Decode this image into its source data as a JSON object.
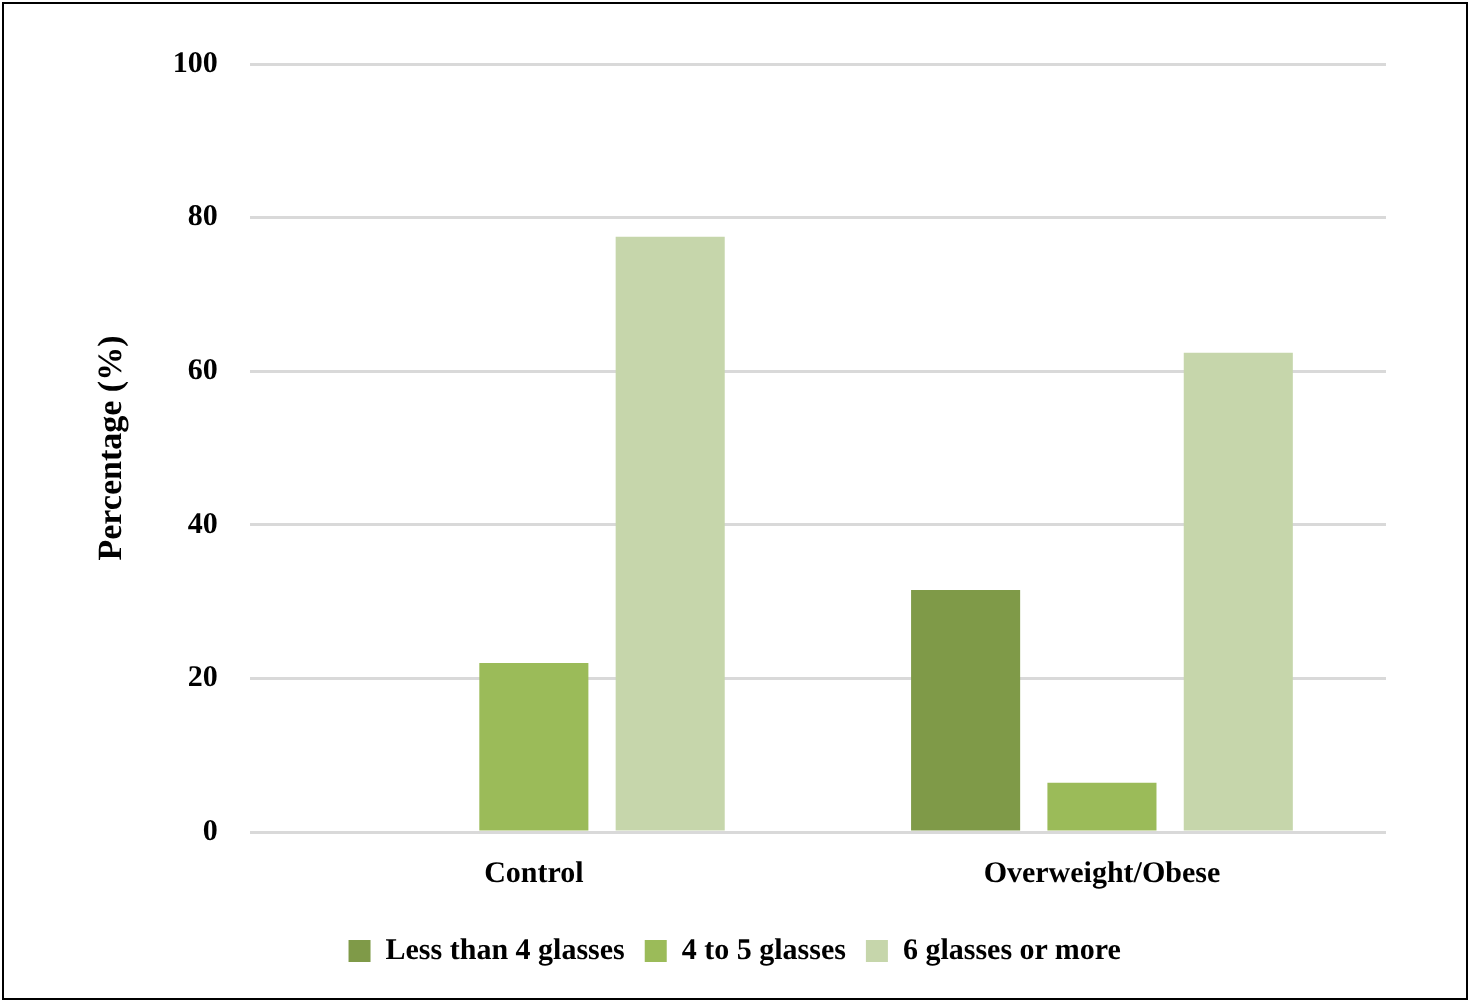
{
  "chart_data": {
    "type": "bar",
    "ylabel": "Percentage (%)",
    "categories": [
      "Control",
      "Overweight/Obese"
    ],
    "series": [
      {
        "name": "Less than 4 glasses",
        "color": "#7f9a48",
        "values": [
          0,
          31.5
        ]
      },
      {
        "name": "4 to 5 glasses",
        "color": "#9bbb59",
        "values": [
          22,
          6.4
        ]
      },
      {
        "name": "6 glasses or more",
        "color": "#c6d6ab",
        "values": [
          77.5,
          62.4
        ]
      }
    ],
    "ylim": [
      0,
      100
    ],
    "yticks": [
      0,
      20,
      40,
      60,
      80,
      100
    ],
    "grid": "y",
    "legend": "bottom"
  }
}
